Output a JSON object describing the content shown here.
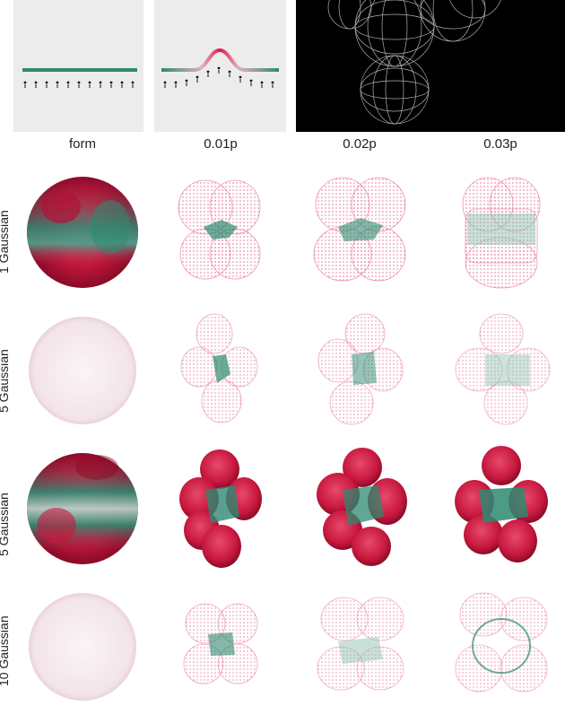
{
  "columns": [
    "form",
    "0.01p",
    "0.02p",
    "0.03p"
  ],
  "rows": [
    {
      "label": "1 Gaussian"
    },
    {
      "label": "5 Gaussian"
    },
    {
      "label": "5 Gaussian"
    },
    {
      "label": "10 Gaussian"
    }
  ],
  "colors": {
    "teal": "#2e8a72",
    "crimson": "#c8183e",
    "panel_gray": "#ececec",
    "background_black": "#000000"
  }
}
